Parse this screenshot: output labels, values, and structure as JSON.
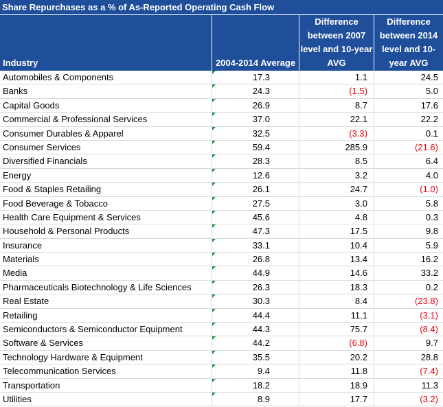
{
  "title": "Share Repurchases as a % of As-Reported Operating Cash Flow",
  "columns": {
    "industry": "Industry",
    "avg": "2004-2014 Average",
    "diff2007": "Difference between 2007 level and 10-year AVG",
    "diff2014": "Difference between 2014 level and 10-year AVG"
  },
  "colors": {
    "header_bg": "#1f4e9a",
    "negative": "#e8000b",
    "indicator": "#1e9c2a"
  },
  "rows": [
    {
      "industry": "Automobiles & Components",
      "avg": "17.3",
      "d07": "1.1",
      "d14": "24.5"
    },
    {
      "industry": "Banks",
      "avg": "24.3",
      "d07": "(1.5)",
      "d14": "5.0"
    },
    {
      "industry": "Capital Goods",
      "avg": "26.9",
      "d07": "8.7",
      "d14": "17.6"
    },
    {
      "industry": "Commercial & Professional Services",
      "avg": "37.0",
      "d07": "22.1",
      "d14": "22.2"
    },
    {
      "industry": "Consumer Durables & Apparel",
      "avg": "32.5",
      "d07": "(3.3)",
      "d14": "0.1"
    },
    {
      "industry": "Consumer Services",
      "avg": "59.4",
      "d07": "285.9",
      "d14": "(21.6)"
    },
    {
      "industry": "Diversified Financials",
      "avg": "28.3",
      "d07": "8.5",
      "d14": "6.4"
    },
    {
      "industry": "Energy",
      "avg": "12.6",
      "d07": "3.2",
      "d14": "4.0"
    },
    {
      "industry": "Food & Staples Retailing",
      "avg": "26.1",
      "d07": "24.7",
      "d14": "(1.0)"
    },
    {
      "industry": "Food Beverage & Tobacco",
      "avg": "27.5",
      "d07": "3.0",
      "d14": "5.8"
    },
    {
      "industry": "Health Care Equipment & Services",
      "avg": "45.6",
      "d07": "4.8",
      "d14": "0.3"
    },
    {
      "industry": "Household & Personal Products",
      "avg": "47.3",
      "d07": "17.5",
      "d14": "9.8"
    },
    {
      "industry": "Insurance",
      "avg": "33.1",
      "d07": "10.4",
      "d14": "5.9"
    },
    {
      "industry": "Materials",
      "avg": "26.8",
      "d07": "13.4",
      "d14": "16.2"
    },
    {
      "industry": "Media",
      "avg": "44.9",
      "d07": "14.6",
      "d14": "33.2"
    },
    {
      "industry": "Pharmaceuticals Biotechnology & Life Sciences",
      "avg": "26.3",
      "d07": "18.3",
      "d14": "0.2"
    },
    {
      "industry": "Real Estate",
      "avg": "30.3",
      "d07": "8.4",
      "d14": "(23.8)"
    },
    {
      "industry": "Retailing",
      "avg": "44.4",
      "d07": "11.1",
      "d14": "(3.1)"
    },
    {
      "industry": "Semiconductors & Semiconductor Equipment",
      "avg": "44.3",
      "d07": "75.7",
      "d14": "(8.4)"
    },
    {
      "industry": "Software & Services",
      "avg": "44.2",
      "d07": "(6.8)",
      "d14": "9.7"
    },
    {
      "industry": "Technology Hardware & Equipment",
      "avg": "35.5",
      "d07": "20.2",
      "d14": "28.8"
    },
    {
      "industry": "Telecommunication Services",
      "avg": "9.4",
      "d07": "11.8",
      "d14": "(7.4)"
    },
    {
      "industry": "Transportation",
      "avg": "18.2",
      "d07": "18.9",
      "d14": "11.3"
    },
    {
      "industry": "Utilities",
      "avg": "8.9",
      "d07": "17.7",
      "d14": "(3.2)"
    }
  ]
}
